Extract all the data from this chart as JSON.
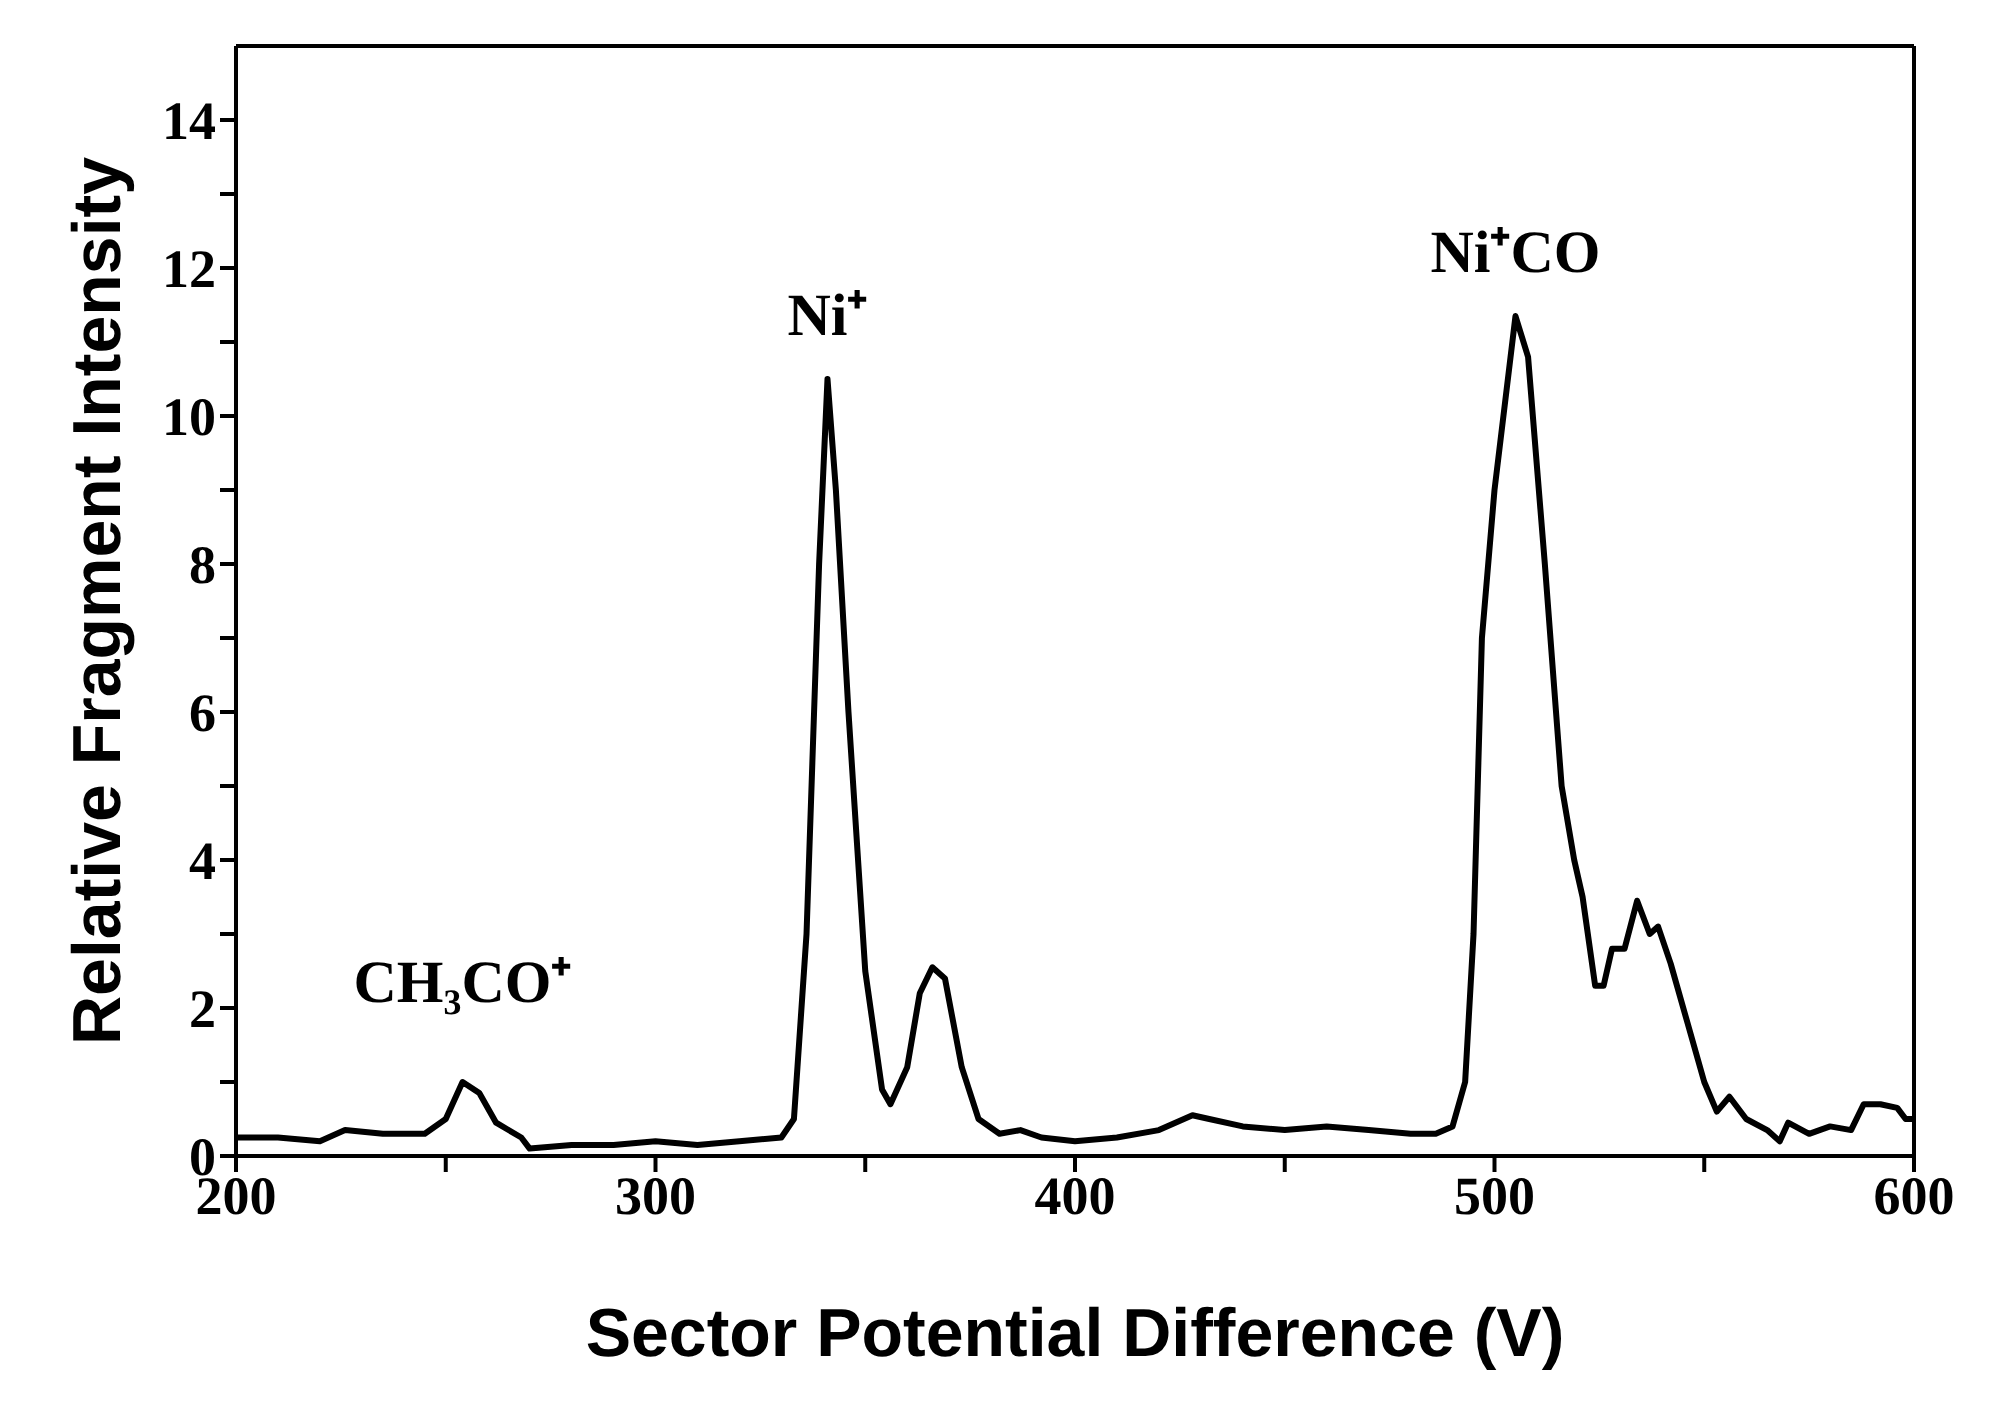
{
  "chart_data": {
    "type": "line",
    "xlabel": "Sector Potential Difference (V)",
    "ylabel": "Relative Fragment Intensity",
    "x": [
      200,
      210,
      220,
      226,
      235,
      245,
      250,
      254,
      258,
      262,
      268,
      270,
      280,
      290,
      300,
      310,
      320,
      330,
      333,
      336,
      339,
      341,
      343,
      346,
      350,
      354,
      356,
      360,
      363,
      366,
      369,
      373,
      377,
      382,
      387,
      392,
      400,
      410,
      420,
      428,
      432,
      440,
      450,
      460,
      470,
      480,
      486,
      490,
      493,
      495,
      497,
      500,
      505,
      508,
      512,
      516,
      519,
      521,
      524,
      526,
      528,
      531,
      534,
      537,
      539,
      542,
      546,
      550,
      553,
      556,
      560,
      565,
      568,
      570,
      575,
      580,
      585,
      588,
      592,
      596,
      598,
      600
    ],
    "series": [
      {
        "color": "#000000",
        "values": [
          0.25,
          0.25,
          0.2,
          0.35,
          0.3,
          0.3,
          0.5,
          1.0,
          0.85,
          0.45,
          0.25,
          0.1,
          0.15,
          0.15,
          0.2,
          0.15,
          0.2,
          0.25,
          0.5,
          3,
          8,
          10.5,
          9,
          6,
          2.5,
          0.9,
          0.7,
          1.2,
          2.2,
          2.55,
          2.4,
          1.2,
          0.5,
          0.3,
          0.35,
          0.25,
          0.2,
          0.25,
          0.35,
          0.55,
          0.5,
          0.4,
          0.35,
          0.4,
          0.35,
          0.3,
          0.3,
          0.4,
          1.0,
          3,
          7,
          9,
          11.35,
          10.8,
          8,
          5,
          4,
          3.5,
          2.3,
          2.3,
          2.8,
          2.8,
          3.45,
          3.0,
          3.1,
          2.6,
          1.8,
          1.0,
          0.6,
          0.8,
          0.5,
          0.35,
          0.2,
          0.45,
          0.3,
          0.4,
          0.35,
          0.7,
          0.7,
          0.65,
          0.5,
          0.5
        ]
      }
    ],
    "xlim": [
      200,
      600
    ],
    "xticks": [
      200,
      {
        "value": 250,
        "label": null
      },
      300,
      {
        "value": 350,
        "label": null
      },
      400,
      {
        "value": 450,
        "label": null
      },
      500,
      {
        "value": 550,
        "label": null
      },
      600
    ],
    "ylim": [
      0,
      15
    ],
    "yticks": [
      0,
      {
        "value": 1,
        "label": null
      },
      2,
      {
        "value": 3,
        "label": null
      },
      4,
      {
        "value": 5,
        "label": null
      },
      6,
      {
        "value": 7,
        "label": null
      },
      8,
      {
        "value": 9,
        "label": null
      },
      10,
      {
        "value": 11,
        "label": null
      },
      12,
      {
        "value": 13,
        "label": null
      },
      14
    ],
    "annotations": [
      {
        "text": "CH₃CO⁺",
        "x": 254,
        "y": 1.0
      },
      {
        "text": "Ni⁺",
        "x": 341,
        "y": 10.5
      },
      {
        "text": "Ni⁺CO",
        "x": 505,
        "y": 11.35
      }
    ],
    "grid": false,
    "legend": false,
    "marker": "none",
    "line_style": "solid"
  }
}
